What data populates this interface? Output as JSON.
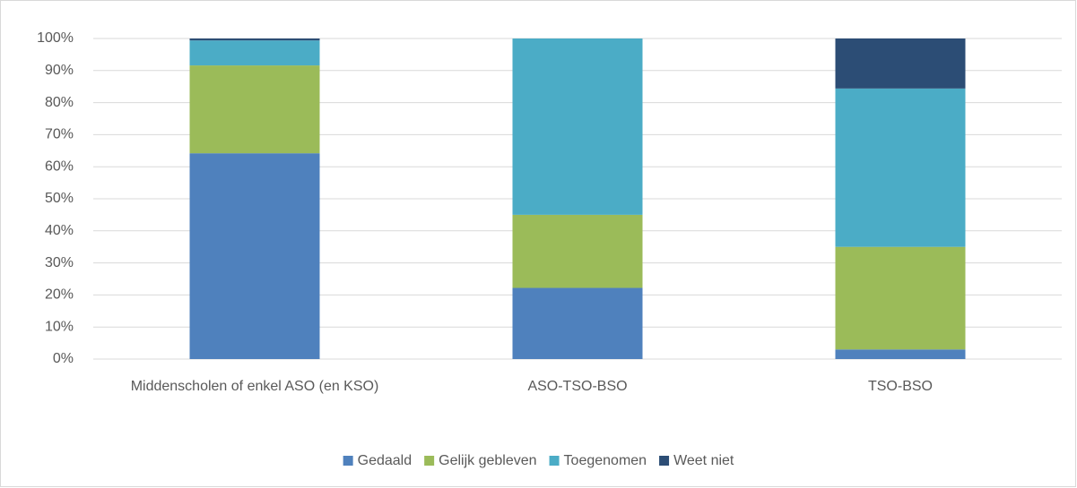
{
  "chart_data": {
    "type": "stacked_bar",
    "categories": [
      "Middenscholen of enkel ASO  (en KSO)",
      "ASO-TSO-BSO",
      "TSO-BSO"
    ],
    "series": [
      {
        "name": "Gedaald",
        "color": "#4f81bd",
        "values": [
          64.2,
          22.2,
          3.0
        ]
      },
      {
        "name": "Gelijk gebleven",
        "color": "#9bbb59",
        "values": [
          27.4,
          22.8,
          32.0
        ]
      },
      {
        "name": "Toegenomen",
        "color": "#4bacc6",
        "values": [
          7.8,
          55.0,
          49.4
        ]
      },
      {
        "name": "Weet niet",
        "color": "#2c4d75",
        "values": [
          0.6,
          0,
          15.6
        ]
      }
    ],
    "ylim": [
      0,
      100
    ],
    "yticks": [
      {
        "value": 0,
        "label": "0%"
      },
      {
        "value": 10,
        "label": "10%"
      },
      {
        "value": 20,
        "label": "20%"
      },
      {
        "value": 30,
        "label": "30%"
      },
      {
        "value": 40,
        "label": "40%"
      },
      {
        "value": 50,
        "label": "50%"
      },
      {
        "value": 60,
        "label": "60%"
      },
      {
        "value": 70,
        "label": "70%"
      },
      {
        "value": 80,
        "label": "80%"
      },
      {
        "value": 90,
        "label": "90%"
      },
      {
        "value": 100,
        "label": "100%"
      }
    ],
    "grid": true,
    "legend": "bottom"
  }
}
